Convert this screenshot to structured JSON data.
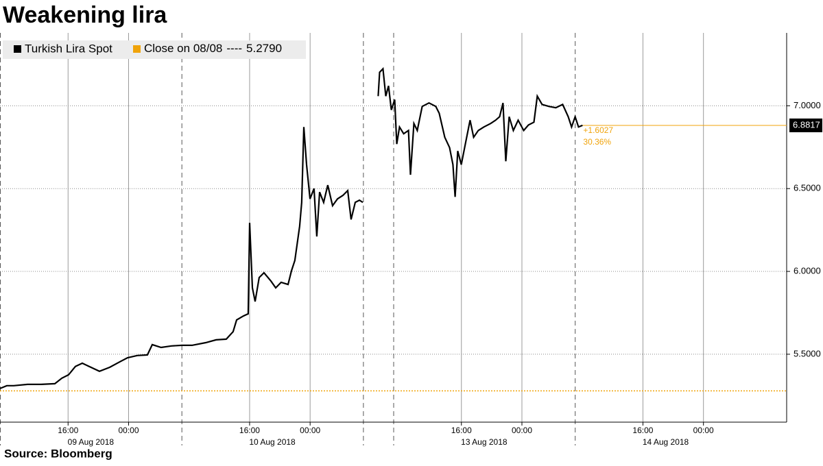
{
  "chart_data": {
    "type": "line",
    "title": "Weakening lira",
    "source": "Source: Bloomberg",
    "series": [
      {
        "name": "Turkish Lira Spot",
        "color": "#000000",
        "x": [
          "2018-08-09T07:00",
          "2018-08-09T07:54",
          "2018-08-09T08:49",
          "2018-08-09T10:38",
          "2018-08-09T12:26",
          "2018-08-09T14:15",
          "2018-08-09T15:10",
          "2018-08-09T16:04",
          "2018-08-09T16:58",
          "2018-08-09T17:53",
          "2018-08-09T18:47",
          "2018-08-09T20:09",
          "2018-08-09T21:30",
          "2018-08-09T22:52",
          "2018-08-09T23:52",
          "2018-08-10T01:08",
          "2018-08-10T02:29",
          "2018-08-10T03:08",
          "2018-08-10T04:18",
          "2018-08-10T05:40",
          "2018-08-10T07:02",
          "2018-08-10T08:23",
          "2018-08-10T10:12",
          "2018-08-10T11:34",
          "2018-08-10T12:55",
          "2018-08-10T13:49",
          "2018-08-10T14:17",
          "2018-08-10T15:11",
          "2018-08-10T15:49",
          "2018-08-10T16:00",
          "2018-08-10T16:22",
          "2018-08-10T16:44",
          "2018-08-10T17:16",
          "2018-08-10T17:54",
          "2018-08-10T18:49",
          "2018-08-10T19:27",
          "2018-08-10T20:10",
          "2018-08-10T21:05",
          "2018-08-10T21:32",
          "2018-08-10T21:59",
          "2018-08-10T22:37",
          "2018-08-10T22:53",
          "2018-08-10T23:10",
          "2018-08-10T23:32",
          "2018-08-10T23:59",
          "2018-08-11T00:31",
          "2018-08-11T00:53",
          "2018-08-11T01:15",
          "2018-08-11T01:47",
          "2018-08-11T02:20",
          "2018-08-11T02:58",
          "2018-08-11T03:37",
          "2018-08-11T04:20",
          "2018-08-11T04:58",
          "2018-08-11T05:25",
          "2018-08-11T05:58",
          "2018-08-11T06:31",
          "2018-08-11T06:58",
          "2018-08-13T05:00",
          "2018-08-13T05:11",
          "2018-08-13T05:38",
          "2018-08-13T06:00",
          "2018-08-13T06:22",
          "2018-08-13T06:44",
          "2018-08-13T07:11",
          "2018-08-13T07:27",
          "2018-08-13T07:49",
          "2018-08-13T08:22",
          "2018-08-13T09:00",
          "2018-08-13T09:16",
          "2018-08-13T09:43",
          "2018-08-13T10:10",
          "2018-08-13T10:49",
          "2018-08-13T11:43",
          "2018-08-13T12:37",
          "2018-08-13T13:04",
          "2018-08-13T13:48",
          "2018-08-13T14:26",
          "2018-08-13T14:53",
          "2018-08-13T15:10",
          "2018-08-13T15:31",
          "2018-08-13T15:59",
          "2018-08-13T16:31",
          "2018-08-13T17:09",
          "2018-08-13T17:37",
          "2018-08-13T18:14",
          "2018-08-13T18:58",
          "2018-08-13T19:52",
          "2018-08-13T20:31",
          "2018-08-13T21:03",
          "2018-08-13T21:30",
          "2018-08-13T21:52",
          "2018-08-13T22:19",
          "2018-08-13T22:52",
          "2018-08-13T23:30",
          "2018-08-14T00:14",
          "2018-08-14T00:52",
          "2018-08-14T01:35",
          "2018-08-14T02:02",
          "2018-08-14T02:40",
          "2018-08-14T03:35",
          "2018-08-14T04:29",
          "2018-08-14T05:23",
          "2018-08-14T06:07",
          "2018-08-14T06:34",
          "2018-08-14T07:02",
          "2018-08-14T07:29",
          "2018-08-14T08:01"
        ],
        "values": [
          5.293,
          5.31,
          5.31,
          5.318,
          5.318,
          5.322,
          5.355,
          5.376,
          5.426,
          5.446,
          5.426,
          5.397,
          5.421,
          5.455,
          5.479,
          5.492,
          5.496,
          5.558,
          5.541,
          5.55,
          5.554,
          5.554,
          5.57,
          5.587,
          5.591,
          5.636,
          5.707,
          5.731,
          5.744,
          6.293,
          5.901,
          5.818,
          5.963,
          5.992,
          5.942,
          5.901,
          5.934,
          5.921,
          6.004,
          6.066,
          6.273,
          6.417,
          6.872,
          6.645,
          6.438,
          6.5,
          6.211,
          6.479,
          6.417,
          6.521,
          6.397,
          6.438,
          6.459,
          6.488,
          6.314,
          6.417,
          6.43,
          6.417,
          7.058,
          7.202,
          7.223,
          7.058,
          7.12,
          6.975,
          7.037,
          6.769,
          6.872,
          6.831,
          6.851,
          6.583,
          6.893,
          6.851,
          6.996,
          7.017,
          6.996,
          6.955,
          6.81,
          6.748,
          6.645,
          6.45,
          6.727,
          6.645,
          6.769,
          6.913,
          6.81,
          6.851,
          6.872,
          6.893,
          6.913,
          6.934,
          7.017,
          6.665,
          6.934,
          6.851,
          6.913,
          6.851,
          6.884,
          6.901,
          7.058,
          7.008,
          6.996,
          6.988,
          7.008,
          6.934,
          6.872,
          6.934,
          6.872,
          6.8817
        ],
        "last_value_label": "6.8817"
      }
    ],
    "reference_line": {
      "name": "Close on 08/08",
      "separator": "----",
      "value": 5.279,
      "value_label": "5.2790",
      "color": "#f0a30a"
    },
    "annotations": [
      "+1.6027",
      "30.36%"
    ],
    "xlim": [
      "2018-08-09T07:00",
      "2018-08-15T11:00"
    ],
    "xticks": [
      {
        "value": "2018-08-09T16:00",
        "label": "16:00"
      },
      {
        "value": "2018-08-10T00:00",
        "label": "00:00"
      },
      {
        "value": "2018-08-10T16:00",
        "label": "16:00"
      },
      {
        "value": "2018-08-11T00:00",
        "label": "00:00"
      },
      {
        "value": "2018-08-13T16:00",
        "label": "16:00"
      },
      {
        "value": "2018-08-14T00:00",
        "label": "00:00"
      },
      {
        "value": "2018-08-14T16:00",
        "label": "16:00"
      },
      {
        "value": "2018-08-15T00:00",
        "label": "00:00"
      }
    ],
    "xdate_labels": [
      {
        "value": "2018-08-09T19:00",
        "label": "09 Aug 2018"
      },
      {
        "value": "2018-08-10T19:00",
        "label": "10 Aug 2018"
      },
      {
        "value": "2018-08-13T19:00",
        "label": "13 Aug 2018"
      },
      {
        "value": "2018-08-14T19:00",
        "label": "14 Aug 2018"
      }
    ],
    "xgrid_dashed": [
      "2018-08-09T07:00",
      "2018-08-10T07:00",
      "2018-08-11T07:00",
      "2018-08-13T07:00",
      "2018-08-14T07:00"
    ],
    "ylim": [
      5.09,
      7.44
    ],
    "yticks": [
      {
        "value": 5.5,
        "label": "5.5000"
      },
      {
        "value": 6,
        "label": "6.0000"
      },
      {
        "value": 6.5,
        "label": "6.5000"
      },
      {
        "value": 7,
        "label": "7.0000"
      }
    ],
    "y_axis_side": "right",
    "grid": true,
    "legend": "top-left"
  }
}
